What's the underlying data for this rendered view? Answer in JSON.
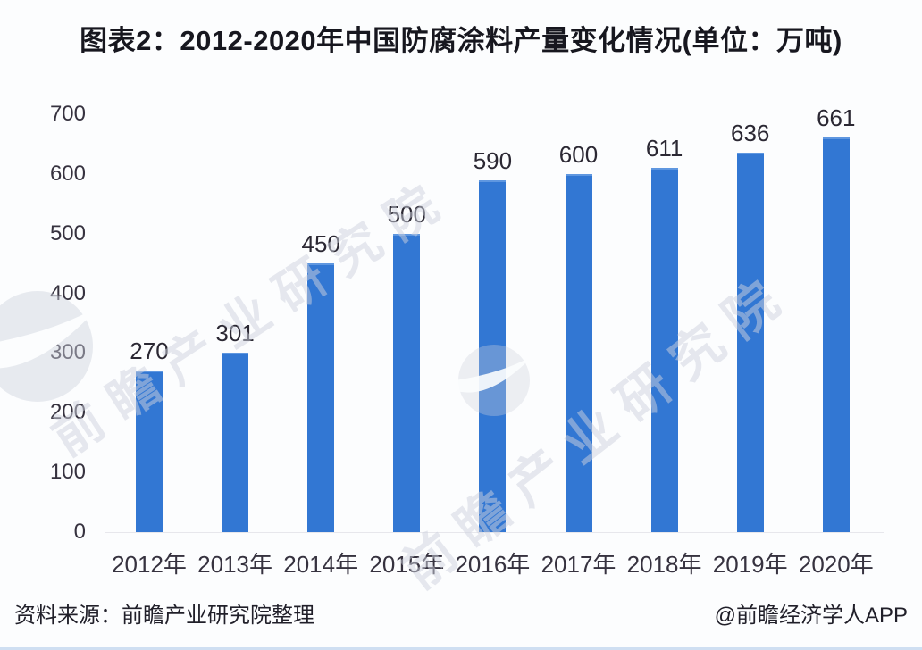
{
  "title": "图表2：2012-2020年中国防腐涂料产量变化情况(单位：万吨)",
  "source_note": "资料来源：前瞻产业研究院整理",
  "credit": "@前瞻经济学人APP",
  "watermark": {
    "text": "前瞻产业研究院",
    "logo": "qianzhan-circle-swoosh-logo"
  },
  "colors": {
    "bar": "#3277d3",
    "bar_top_edge": "#5f97e0",
    "title_text": "#17171f",
    "axis_text": "#36323f",
    "data_label_text": "#2b2833",
    "footer_text": "#201f29",
    "bottom_border": "#cfdff2",
    "background": "#fcfdfe",
    "watermark": "rgba(206,210,222,0.50)"
  },
  "chart_data": {
    "type": "bar",
    "title": "图表2：2012-2020年中国防腐涂料产量变化情况(单位：万吨)",
    "categories": [
      "2012年",
      "2013年",
      "2014年",
      "2015年",
      "2016年",
      "2017年",
      "2018年",
      "2019年",
      "2020年"
    ],
    "values": [
      270,
      301,
      450,
      500,
      590,
      600,
      611,
      636,
      661
    ],
    "unit": "万吨",
    "xlabel": "",
    "ylabel": "",
    "ylim": [
      0,
      700
    ],
    "yticks": [
      0,
      100,
      200,
      300,
      400,
      500,
      600,
      700
    ],
    "grid": false,
    "legend": false,
    "data_labels": true,
    "bar_color": "#3277d3"
  }
}
